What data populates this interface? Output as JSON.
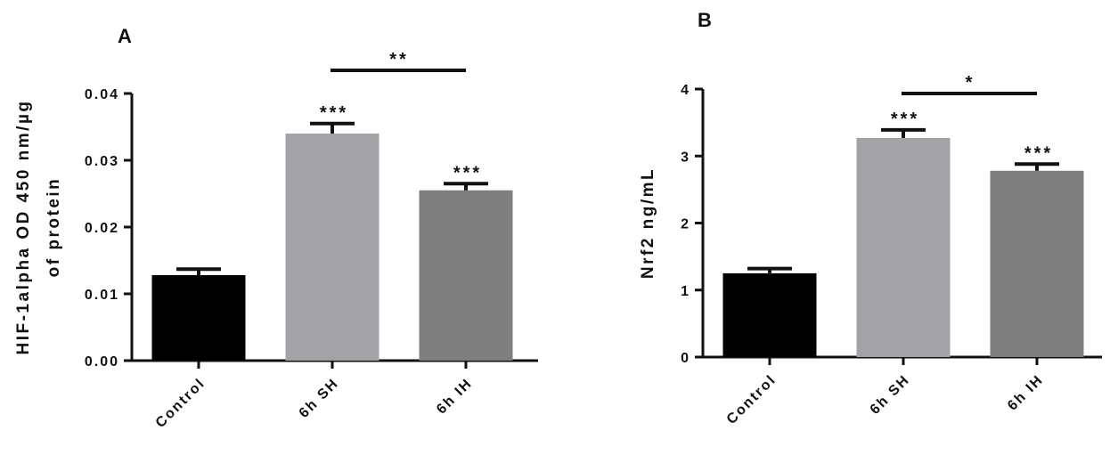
{
  "chart_data": [
    {
      "type": "bar",
      "panel_label": "A",
      "categories": [
        "Control",
        "6h SH",
        "6h IH"
      ],
      "values": [
        0.0128,
        0.034,
        0.0255
      ],
      "errors": [
        0.0009,
        0.0015,
        0.001
      ],
      "colors": [
        "#000000",
        "#a3a3a7",
        "#7f7f7f"
      ],
      "ylabel_lines": [
        "HIF-1alpha  OD 450 nm/µg",
        "of protein"
      ],
      "ylim": [
        0,
        0.04
      ],
      "yticks": [
        0,
        0.01,
        0.02,
        0.03,
        0.04
      ],
      "ytick_labels": [
        "0.00",
        "0.01",
        "0.02",
        "0.03",
        "0.04"
      ],
      "bar_significance": [
        "",
        "***",
        "***"
      ],
      "comparisons": [
        {
          "from": 1,
          "to": 2,
          "label": "**"
        }
      ]
    },
    {
      "type": "bar",
      "panel_label": "B",
      "categories": [
        "Control",
        "6h SH",
        "6h IH"
      ],
      "values": [
        1.25,
        3.27,
        2.78
      ],
      "errors": [
        0.07,
        0.12,
        0.1
      ],
      "colors": [
        "#000000",
        "#a3a3a7",
        "#7f7f7f"
      ],
      "ylabel_lines": [
        "Nrf2 ng/mL"
      ],
      "ylim": [
        0,
        4
      ],
      "yticks": [
        0,
        1,
        2,
        3,
        4
      ],
      "ytick_labels": [
        "0",
        "1",
        "2",
        "3",
        "4"
      ],
      "bar_significance": [
        "",
        "***",
        "***"
      ],
      "comparisons": [
        {
          "from": 1,
          "to": 2,
          "label": "*"
        }
      ]
    }
  ]
}
